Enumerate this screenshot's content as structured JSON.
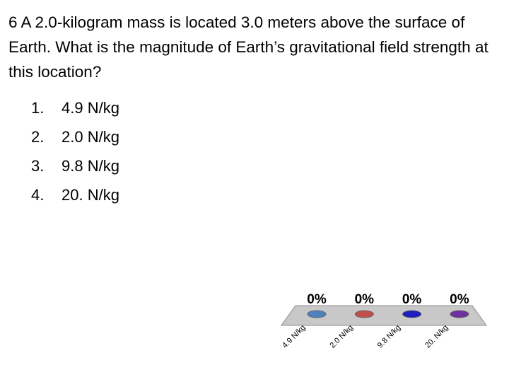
{
  "question": "6 A 2.0-kilogram mass is located 3.0 meters above the surface of Earth. What is the magnitude of Earth’s gravitational field strength at this location?",
  "choices": [
    {
      "number": "1.",
      "text": "4.9 N/kg"
    },
    {
      "number": "2.",
      "text": "2.0 N/kg"
    },
    {
      "number": "3.",
      "text": "9.8 N/kg"
    },
    {
      "number": "4.",
      "text": "20. N/kg"
    }
  ],
  "chart_data": {
    "type": "bar",
    "categories": [
      "4.9 N/kg",
      "2.0 N/kg",
      "9.8 N/kg",
      "20. N/kg"
    ],
    "values": [
      0,
      0,
      0,
      0
    ],
    "value_labels": [
      "0%",
      "0%",
      "0%",
      "0%"
    ],
    "colors": [
      "#4f81bd",
      "#c0504d",
      "#1f1fbf",
      "#7030a0"
    ]
  }
}
